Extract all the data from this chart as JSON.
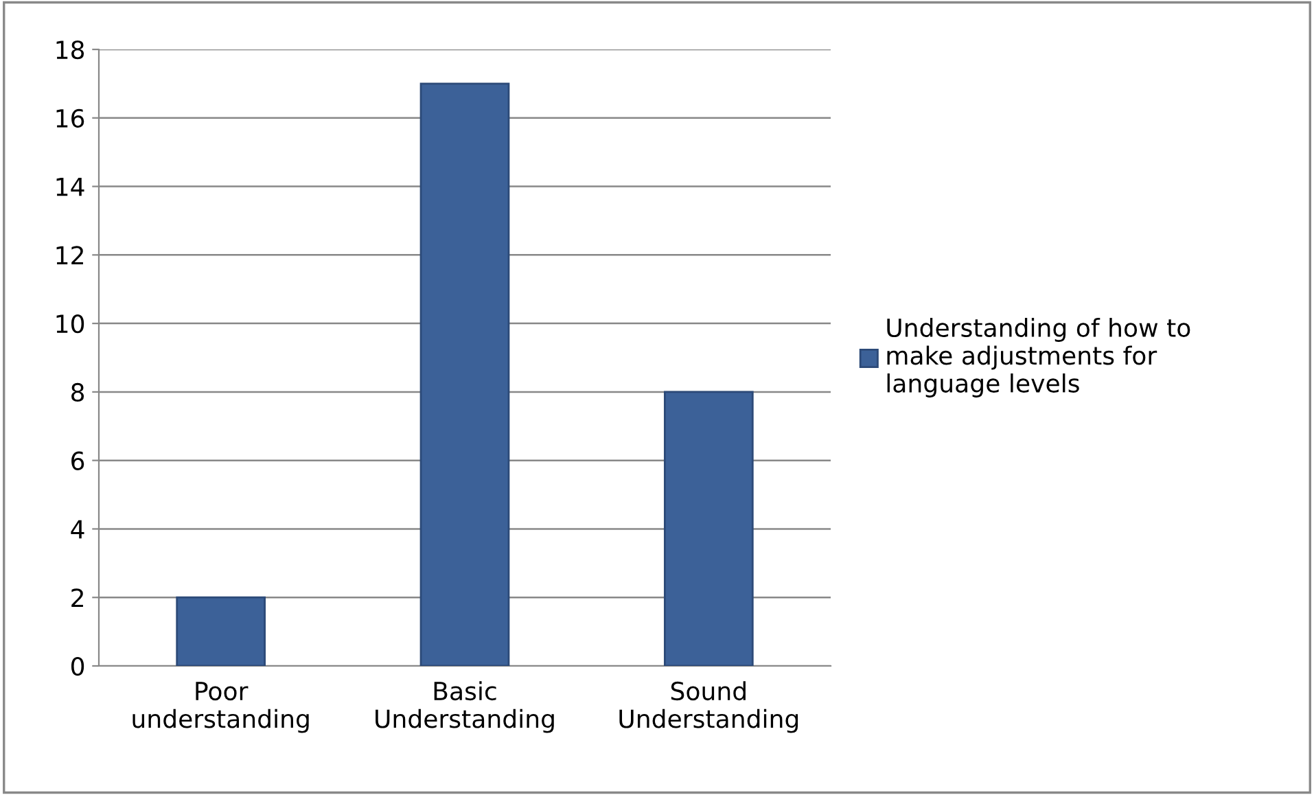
{
  "chart_data": {
    "type": "bar",
    "categories": [
      "Poor\nunderstanding",
      "Basic\nUnderstanding",
      "Sound\nUnderstanding"
    ],
    "series": [
      {
        "name": "Understanding of how to\nmake adjustments for\nlanguage levels",
        "color": "#3c6198",
        "values": [
          2,
          17,
          8
        ]
      }
    ],
    "ylim": [
      0,
      18
    ],
    "yticks": [
      0,
      2,
      4,
      6,
      8,
      10,
      12,
      14,
      16,
      18
    ],
    "grid": "y",
    "legend": "right"
  }
}
